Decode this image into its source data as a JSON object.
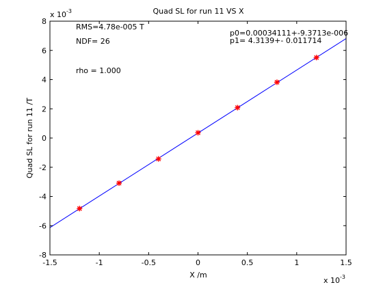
{
  "chart_data": {
    "type": "scatter",
    "title": "Quad SL for run 11 VS X",
    "xlabel": "X /m",
    "ylabel": "Quad SL for run 11 /T",
    "x_multiplier": "x 10",
    "x_exponent": "-3",
    "y_multiplier": "x 10",
    "y_exponent": "-3",
    "xlim": [
      -1.5,
      1.5
    ],
    "ylim": [
      -8,
      8
    ],
    "x_ticks": [
      -1.5,
      -1,
      -0.5,
      0,
      0.5,
      1,
      1.5
    ],
    "x_tick_labels": [
      "-1.5",
      "-1",
      "-0.5",
      "0",
      "0.5",
      "1",
      "1.5"
    ],
    "y_ticks": [
      -8,
      -6,
      -4,
      -2,
      0,
      2,
      4,
      6,
      8
    ],
    "y_tick_labels": [
      "-8",
      "-6",
      "-4",
      "-2",
      "0",
      "2",
      "4",
      "6",
      "8"
    ],
    "grid": false,
    "series": [
      {
        "type": "scatter",
        "color": "#ff0000",
        "marker": "asterisk",
        "x": [
          -1.2,
          -0.8,
          -0.4,
          0.0,
          0.4,
          0.8,
          1.2
        ],
        "y": [
          -4.83,
          -3.09,
          -1.43,
          0.36,
          2.08,
          3.82,
          5.51
        ]
      },
      {
        "type": "line",
        "color": "#0000ff",
        "slope": 4.3139,
        "intercept": 0.34111
      }
    ],
    "annotations": {
      "rms": "RMS=4.78e-005 T",
      "ndf": "NDF=   26",
      "rho": "rho    =  1.000",
      "p0": "p0=0.00034111+-9.3713e-006",
      "p1": "p1=   4.3139+- 0.011714"
    }
  }
}
